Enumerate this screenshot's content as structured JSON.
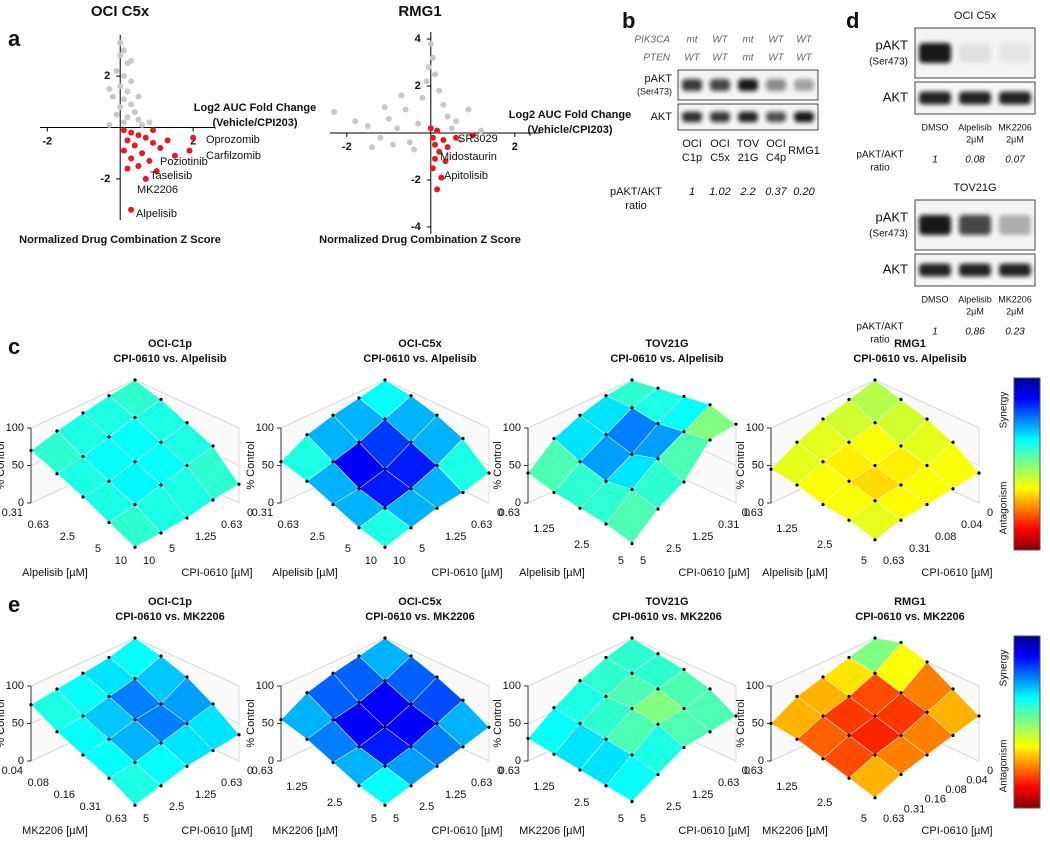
{
  "panel_a": {
    "label": "a",
    "charts": [
      {
        "type": "scatter",
        "title": "OCI C5x",
        "xlabel": "Normalized Drug Combination Z Score",
        "ylabel": [
          "Log2 AUC Fold Change",
          "(Vehicle/CPI203)"
        ],
        "xlim": [
          -2.2,
          2.6
        ],
        "ylim": [
          -3.6,
          3.6
        ],
        "xticks": [
          -2,
          2
        ],
        "yticks": [
          2,
          -2
        ],
        "series": [
          {
            "color": "#c8c8c8",
            "x": [
              0,
              0.1,
              0,
              0.2,
              -0.1,
              0.1,
              0.3,
              0,
              0.2,
              -0.2,
              0.1,
              0.3,
              0,
              0.4,
              -0.1,
              0.2,
              0.5,
              0.1,
              0.6,
              -0.3,
              0.8,
              0.3,
              -0.3,
              0.5
            ],
            "y": [
              3.3,
              3,
              2.8,
              2.5,
              2.2,
              2,
              1.8,
              1.6,
              1.4,
              1.2,
              1.1,
              0.9,
              0.8,
              0.6,
              0.5,
              0.4,
              0.3,
              0.2,
              0.1,
              0.1,
              0.2,
              2.6,
              1.5,
              1.2
            ]
          },
          {
            "color": "#e8191c",
            "x": [
              0.1,
              0.3,
              0.5,
              0.2,
              0.7,
              0.4,
              0.9,
              0.1,
              0.6,
              1.1,
              0.3,
              0.8,
              1.3,
              0.5,
              1.0,
              0.2,
              0.7,
              2.0,
              1.9,
              0.3,
              0.9,
              1.5
            ],
            "y": [
              -0.1,
              -0.2,
              -0.3,
              -0.5,
              -0.4,
              -0.7,
              -0.6,
              -0.9,
              -1,
              -0.8,
              -1.2,
              -1.3,
              -0.5,
              -1.5,
              -1.7,
              -1.6,
              -2,
              -0.4,
              -0.9,
              -3.2,
              -0.1,
              -1.1
            ]
          }
        ],
        "annotations": [
          "Oprozomib",
          "Carfilzomib",
          "Poziotinib",
          "Taselisib",
          "MK2206",
          "Alpelisib"
        ]
      },
      {
        "type": "scatter",
        "title": "RMG1",
        "xlabel": "Normalized Drug Combination Z Score",
        "ylabel": [
          "Log2 AUC Fold Change",
          "(Vehicle/CPI203)"
        ],
        "xlim": [
          -2.4,
          2.6
        ],
        "ylim": [
          -4.3,
          4.3
        ],
        "xticks": [
          -2,
          2
        ],
        "yticks": [
          4,
          2,
          -2,
          -4
        ],
        "series": [
          {
            "color": "#c8c8c8",
            "x": [
              -2.3,
              -1.8,
              -1.5,
              -1.2,
              -1.0,
              -0.8,
              -0.6,
              -0.5,
              -0.3,
              -0.2,
              -0.1,
              0,
              0.05,
              -0.05,
              0.1,
              0.2,
              0.3,
              0.4,
              0.5,
              0.6,
              -0.4,
              -0.9,
              -1.4,
              0.7,
              -0.7,
              -1.1,
              0.9,
              1.2
            ],
            "y": [
              0.9,
              0.5,
              0.3,
              -0.2,
              0.6,
              0.2,
              1.0,
              -0.4,
              0.4,
              1.5,
              2.2,
              3.8,
              3.2,
              2.8,
              2.5,
              1.8,
              1.2,
              0.7,
              0.2,
              0.5,
              -0.7,
              -0.5,
              -0.6,
              -0.3,
              1.6,
              1.1,
              1.0,
              0.1
            ]
          },
          {
            "color": "#e8191c",
            "x": [
              0,
              0.05,
              0.1,
              0.15,
              0.2,
              0.1,
              0.3,
              0.05,
              0.4,
              0.25,
              0.6,
              1.0,
              0.15,
              0.35
            ],
            "y": [
              0.2,
              -0.2,
              -0.5,
              0.1,
              -0.8,
              -1.1,
              -0.3,
              -1.5,
              -0.6,
              -1.9,
              -0.2,
              -0.1,
              -2.4,
              -1.2
            ]
          }
        ],
        "annotations": [
          "SR3029",
          "Midostaurin",
          "Apitolisib"
        ]
      }
    ]
  },
  "panel_b": {
    "label": "b",
    "rows": [
      {
        "label": "PIK3CA",
        "cells": [
          "mt",
          "WT",
          "mt",
          "WT",
          "WT"
        ]
      },
      {
        "label": "PTEN",
        "cells": [
          "WT",
          "WT",
          "mt",
          "WT",
          "WT"
        ]
      }
    ],
    "bands": [
      [
        "pAKT",
        "(Ser473)"
      ],
      [
        "AKT"
      ]
    ],
    "lanes": [
      [
        "OCI",
        "C1p"
      ],
      [
        "OCI",
        "C5x"
      ],
      [
        "TOV",
        "21G"
      ],
      [
        "OCI",
        "C4p"
      ],
      [
        "RMG1"
      ]
    ],
    "ratio_label": [
      "pAKT/AKT",
      "ratio"
    ],
    "ratios": [
      "1",
      "1.02",
      "2.2",
      "0.37",
      "0.20"
    ]
  },
  "panel_d": {
    "label": "d",
    "blots": [
      {
        "title": "OCI C5x",
        "bands": [
          [
            "pAKT",
            "(Ser473)"
          ],
          [
            "AKT"
          ]
        ],
        "lanes": [
          [
            "DMSO"
          ],
          [
            "Alpelisib",
            "2µM"
          ],
          [
            "MK2206",
            "2µM"
          ]
        ],
        "ratio_label": [
          "pAKT/AKT",
          "ratio"
        ],
        "ratios": [
          "1",
          "0.08",
          "0.07"
        ]
      },
      {
        "title": "TOV21G",
        "bands": [
          [
            "pAKT",
            "(Ser473)"
          ],
          [
            "AKT"
          ]
        ],
        "lanes": [
          [
            "DMSO"
          ],
          [
            "Alpelisib",
            "2µM"
          ],
          [
            "MK2206",
            "2µM"
          ]
        ],
        "ratio_label": [
          "pAKT/AKT",
          "ratio"
        ],
        "ratios": [
          "1",
          "0.86",
          "0.23"
        ]
      }
    ]
  },
  "panel_c": {
    "label": "c",
    "colorbar": {
      "top": "Synergy",
      "bottom": "Antagonism"
    },
    "plots": [
      {
        "title": "OCI-C1p",
        "subtitle": "CPI-0610 vs. Alpelisib",
        "zlabel": "% Control",
        "zlim": [
          0,
          100
        ],
        "zticks": [
          0,
          50,
          100
        ],
        "xlabel": "Alpelisib [µM]",
        "xticks": [
          0.31,
          0.63,
          2.5,
          5,
          10
        ],
        "ylabel": "CPI-0610 [µM]",
        "yticks": [
          10,
          5,
          1.25,
          0.63,
          0
        ],
        "values": [
          [
            100,
            90,
            75,
            60,
            25
          ],
          [
            95,
            82,
            65,
            50,
            20
          ],
          [
            88,
            72,
            55,
            40,
            12
          ],
          [
            80,
            62,
            45,
            30,
            8
          ],
          [
            70,
            55,
            40,
            22,
            5
          ]
        ],
        "scores": [
          [
            0.42,
            0.4,
            0.4,
            0.42
          ],
          [
            0.4,
            0.38,
            0.38,
            0.4
          ],
          [
            0.4,
            0.38,
            0.37,
            0.4
          ],
          [
            0.42,
            0.4,
            0.4,
            0.42
          ]
        ]
      },
      {
        "title": "OCI-C5x",
        "subtitle": "CPI-0610 vs. Alpelisib",
        "zlabel": "% Control",
        "zlim": [
          0,
          100
        ],
        "zticks": [
          0,
          50,
          100
        ],
        "xlabel": "Alpelisib [µM]",
        "xticks": [
          0.31,
          0.63,
          2.5,
          5,
          10
        ],
        "ylabel": "CPI-0610 [µM]",
        "yticks": [
          10,
          5,
          1.25,
          0.63,
          0
        ],
        "values": [
          [
            100,
            95,
            85,
            70,
            40
          ],
          [
            92,
            80,
            65,
            50,
            30
          ],
          [
            85,
            65,
            45,
            35,
            25
          ],
          [
            75,
            55,
            35,
            25,
            15
          ],
          [
            55,
            45,
            30,
            15,
            5
          ]
        ],
        "scores": [
          [
            0.38,
            0.3,
            0.3,
            0.4
          ],
          [
            0.3,
            0.18,
            0.15,
            0.3
          ],
          [
            0.3,
            0.12,
            0.15,
            0.3
          ],
          [
            0.4,
            0.3,
            0.3,
            0.4
          ]
        ]
      },
      {
        "title": "TOV21G",
        "subtitle": "CPI-0610 vs. Alpelisib",
        "zlabel": "% Control",
        "zlim": [
          0,
          100
        ],
        "zticks": [
          0,
          50,
          100
        ],
        "xlabel": "Alpelisib [µM]",
        "xticks": [
          0.63,
          1.25,
          2.5,
          5
        ],
        "ylabel": "CPI-0610 [µM]",
        "yticks": [
          5,
          2.5,
          1.25,
          0.31,
          0
        ],
        "values": [
          [
            100,
            105,
            110,
            115,
            105
          ],
          [
            95,
            95,
            90,
            95,
            100
          ],
          [
            85,
            75,
            65,
            75,
            60
          ],
          [
            70,
            55,
            45,
            50,
            40
          ],
          [
            40,
            30,
            25,
            20,
            10
          ]
        ],
        "scores": [
          [
            0.42,
            0.4,
            0.38,
            0.5
          ],
          [
            0.35,
            0.25,
            0.28,
            0.45
          ],
          [
            0.35,
            0.28,
            0.35,
            0.42
          ],
          [
            0.45,
            0.42,
            0.42,
            0.45
          ]
        ]
      },
      {
        "title": "RMG1",
        "subtitle": "CPI-0610 vs. Alpelisib",
        "zlabel": "% Control",
        "zlim": [
          0,
          100
        ],
        "zticks": [
          0,
          50,
          100
        ],
        "xlabel": "Alpelisib [µM]",
        "xticks": [
          0.63,
          1.25,
          2.5,
          5
        ],
        "ylabel": "CPI-0610 [µM]",
        "yticks": [
          0.63,
          0.31,
          0.08,
          0.04,
          0
        ],
        "values": [
          [
            100,
            90,
            80,
            65,
            40
          ],
          [
            90,
            75,
            60,
            50,
            35
          ],
          [
            80,
            65,
            50,
            40,
            30
          ],
          [
            65,
            55,
            45,
            35,
            25
          ],
          [
            45,
            40,
            30,
            25,
            15
          ]
        ],
        "scores": [
          [
            0.55,
            0.58,
            0.6,
            0.62
          ],
          [
            0.58,
            0.62,
            0.64,
            0.62
          ],
          [
            0.6,
            0.64,
            0.66,
            0.63
          ],
          [
            0.6,
            0.62,
            0.62,
            0.6
          ]
        ]
      }
    ]
  },
  "panel_e": {
    "label": "e",
    "colorbar": {
      "top": "Synergy",
      "bottom": "Antagonism"
    },
    "plots": [
      {
        "title": "OCI-C1p",
        "subtitle": "CPI-0610 vs. MK2206",
        "zlabel": "% Control",
        "zlim": [
          0,
          100
        ],
        "zticks": [
          0,
          50,
          100
        ],
        "xlabel": "MK2206 [µM]",
        "xticks": [
          0.04,
          0.08,
          0.16,
          0.31,
          0.63
        ],
        "ylabel": "CPI-0610 [µM]",
        "yticks": [
          5,
          2.5,
          1.25,
          0.63,
          0
        ],
        "values": [
          [
            100,
            92,
            80,
            60,
            35
          ],
          [
            90,
            78,
            60,
            50,
            30
          ],
          [
            85,
            70,
            55,
            40,
            25
          ],
          [
            80,
            60,
            45,
            30,
            15
          ],
          [
            75,
            55,
            40,
            25,
            5
          ]
        ],
        "scores": [
          [
            0.38,
            0.32,
            0.28,
            0.35
          ],
          [
            0.35,
            0.25,
            0.25,
            0.35
          ],
          [
            0.38,
            0.32,
            0.3,
            0.38
          ],
          [
            0.4,
            0.38,
            0.38,
            0.4
          ]
        ]
      },
      {
        "title": "OCI-C5x",
        "subtitle": "CPI-0610 vs. MK2206",
        "zlabel": "% Control",
        "zlim": [
          0,
          100
        ],
        "zticks": [
          0,
          50,
          100
        ],
        "xlabel": "MK2206 [µM]",
        "xticks": [
          0.63,
          1.25,
          2.5,
          5
        ],
        "ylabel": "CPI-0610 [µM]",
        "yticks": [
          5,
          2.5,
          1.25,
          0.63,
          0
        ],
        "values": [
          [
            100,
            92,
            80,
            65,
            45
          ],
          [
            92,
            75,
            60,
            50,
            35
          ],
          [
            85,
            62,
            45,
            35,
            25
          ],
          [
            75,
            55,
            35,
            25,
            15
          ],
          [
            55,
            45,
            30,
            15,
            5
          ]
        ],
        "scores": [
          [
            0.3,
            0.22,
            0.2,
            0.3
          ],
          [
            0.22,
            0.12,
            0.12,
            0.25
          ],
          [
            0.22,
            0.12,
            0.15,
            0.28
          ],
          [
            0.3,
            0.25,
            0.3,
            0.38
          ]
        ]
      },
      {
        "title": "TOV21G",
        "subtitle": "CPI-0610 vs. MK2206",
        "zlabel": "% Control",
        "zlim": [
          0,
          100
        ],
        "zticks": [
          0,
          50,
          100
        ],
        "xlabel": "MK2206 [µM]",
        "xticks": [
          0.63,
          1.25,
          2.5,
          5
        ],
        "ylabel": "CPI-0610 [µM]",
        "yticks": [
          5,
          2.5,
          1.25,
          0.63,
          0
        ],
        "values": [
          [
            100,
            95,
            90,
            80,
            60
          ],
          [
            90,
            85,
            80,
            70,
            55
          ],
          [
            75,
            70,
            70,
            65,
            50
          ],
          [
            55,
            50,
            45,
            40,
            30
          ],
          [
            30,
            25,
            20,
            15,
            10
          ]
        ],
        "scores": [
          [
            0.42,
            0.42,
            0.45,
            0.45
          ],
          [
            0.42,
            0.45,
            0.5,
            0.45
          ],
          [
            0.4,
            0.42,
            0.45,
            0.4
          ],
          [
            0.38,
            0.35,
            0.35,
            0.38
          ]
        ]
      },
      {
        "title": "RMG1",
        "subtitle": "CPI-0610 vs. MK2206",
        "zlabel": "% Control",
        "zlim": [
          0,
          100
        ],
        "zticks": [
          0,
          50,
          100
        ],
        "xlabel": "MK2206 [µM]",
        "xticks": [
          0.63,
          1.25,
          2.5,
          5
        ],
        "ylabel": "CPI-0610 [µM]",
        "yticks": [
          0.63,
          0.31,
          0.16,
          0.08,
          0.04,
          0
        ],
        "values": [
          [
            100,
            110,
            100,
            80,
            60
          ],
          [
            90,
            85,
            75,
            65,
            50
          ],
          [
            80,
            70,
            60,
            50,
            40
          ],
          [
            70,
            60,
            50,
            40,
            30
          ],
          [
            50,
            45,
            35,
            25,
            15
          ]
        ],
        "scores": [
          [
            0.5,
            0.62,
            0.75,
            0.7
          ],
          [
            0.65,
            0.8,
            0.82,
            0.75
          ],
          [
            0.7,
            0.82,
            0.84,
            0.75
          ],
          [
            0.7,
            0.78,
            0.8,
            0.7
          ]
        ]
      }
    ]
  }
}
